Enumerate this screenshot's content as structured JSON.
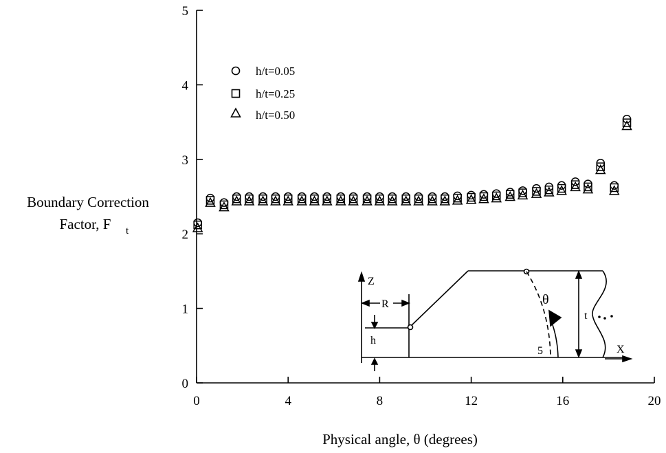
{
  "chart_data": {
    "type": "scatter",
    "title": "",
    "xlabel": "Physical angle, θ (degrees)",
    "ylabel_lines": [
      "Boundary Correction",
      "Factor, F",
      "t"
    ],
    "xlim": [
      0,
      20
    ],
    "ylim": [
      0,
      5
    ],
    "xticks": [
      "0",
      "4",
      "8",
      "12",
      "16",
      "20"
    ],
    "yticks": [
      "0",
      "1",
      "2",
      "3",
      "4",
      "5"
    ],
    "grid": false,
    "legend_position": "top-left",
    "series": [
      {
        "name": "h/t=0.05",
        "marker": "circle",
        "points": [
          [
            0.05,
            2.15
          ],
          [
            0.6,
            2.48
          ],
          [
            1.2,
            2.42
          ],
          [
            1.75,
            2.5
          ],
          [
            2.3,
            2.5
          ],
          [
            2.9,
            2.5
          ],
          [
            3.45,
            2.5
          ],
          [
            4.0,
            2.5
          ],
          [
            4.6,
            2.5
          ],
          [
            5.15,
            2.5
          ],
          [
            5.7,
            2.5
          ],
          [
            6.3,
            2.5
          ],
          [
            6.85,
            2.5
          ],
          [
            7.45,
            2.5
          ],
          [
            8.0,
            2.5
          ],
          [
            8.55,
            2.5
          ],
          [
            9.15,
            2.5
          ],
          [
            9.7,
            2.5
          ],
          [
            10.3,
            2.5
          ],
          [
            10.85,
            2.5
          ],
          [
            11.4,
            2.51
          ],
          [
            12.0,
            2.52
          ],
          [
            12.55,
            2.53
          ],
          [
            13.1,
            2.54
          ],
          [
            13.7,
            2.56
          ],
          [
            14.25,
            2.58
          ],
          [
            14.85,
            2.61
          ],
          [
            15.4,
            2.63
          ],
          [
            15.95,
            2.65
          ],
          [
            16.55,
            2.7
          ],
          [
            17.1,
            2.67
          ],
          [
            17.65,
            2.95
          ],
          [
            18.25,
            2.65
          ],
          [
            18.8,
            3.54
          ]
        ]
      },
      {
        "name": "h/t=0.25",
        "marker": "square",
        "points": [
          [
            0.05,
            2.12
          ],
          [
            0.6,
            2.45
          ],
          [
            1.2,
            2.39
          ],
          [
            1.75,
            2.47
          ],
          [
            2.3,
            2.47
          ],
          [
            2.9,
            2.47
          ],
          [
            3.45,
            2.47
          ],
          [
            4.0,
            2.47
          ],
          [
            4.6,
            2.47
          ],
          [
            5.15,
            2.47
          ],
          [
            5.7,
            2.47
          ],
          [
            6.3,
            2.47
          ],
          [
            6.85,
            2.47
          ],
          [
            7.45,
            2.47
          ],
          [
            8.0,
            2.47
          ],
          [
            8.55,
            2.47
          ],
          [
            9.15,
            2.47
          ],
          [
            9.7,
            2.47
          ],
          [
            10.3,
            2.47
          ],
          [
            10.85,
            2.47
          ],
          [
            11.4,
            2.48
          ],
          [
            12.0,
            2.49
          ],
          [
            12.55,
            2.5
          ],
          [
            13.1,
            2.51
          ],
          [
            13.7,
            2.53
          ],
          [
            14.25,
            2.55
          ],
          [
            14.85,
            2.57
          ],
          [
            15.4,
            2.59
          ],
          [
            15.95,
            2.61
          ],
          [
            16.55,
            2.66
          ],
          [
            17.1,
            2.63
          ],
          [
            17.65,
            2.9
          ],
          [
            18.25,
            2.62
          ],
          [
            18.8,
            3.49
          ]
        ]
      },
      {
        "name": "h/t=0.50",
        "marker": "triangle",
        "points": [
          [
            0.05,
            2.08
          ],
          [
            0.6,
            2.42
          ],
          [
            1.2,
            2.36
          ],
          [
            1.75,
            2.44
          ],
          [
            2.3,
            2.44
          ],
          [
            2.9,
            2.44
          ],
          [
            3.45,
            2.44
          ],
          [
            4.0,
            2.44
          ],
          [
            4.6,
            2.44
          ],
          [
            5.15,
            2.44
          ],
          [
            5.7,
            2.44
          ],
          [
            6.3,
            2.44
          ],
          [
            6.85,
            2.44
          ],
          [
            7.45,
            2.44
          ],
          [
            8.0,
            2.44
          ],
          [
            8.55,
            2.44
          ],
          [
            9.15,
            2.44
          ],
          [
            9.7,
            2.44
          ],
          [
            10.3,
            2.44
          ],
          [
            10.85,
            2.44
          ],
          [
            11.4,
            2.45
          ],
          [
            12.0,
            2.46
          ],
          [
            12.55,
            2.47
          ],
          [
            13.1,
            2.48
          ],
          [
            13.7,
            2.5
          ],
          [
            14.25,
            2.52
          ],
          [
            14.85,
            2.54
          ],
          [
            15.4,
            2.56
          ],
          [
            15.95,
            2.58
          ],
          [
            16.55,
            2.63
          ],
          [
            17.1,
            2.6
          ],
          [
            17.65,
            2.86
          ],
          [
            18.25,
            2.58
          ],
          [
            18.8,
            3.45
          ]
        ]
      }
    ],
    "inset_labels": {
      "z_axis": "Z",
      "x_axis": "X",
      "radius": "R",
      "depth": "h",
      "thickness": "t",
      "angle": "θ",
      "angle_value": "5"
    }
  }
}
